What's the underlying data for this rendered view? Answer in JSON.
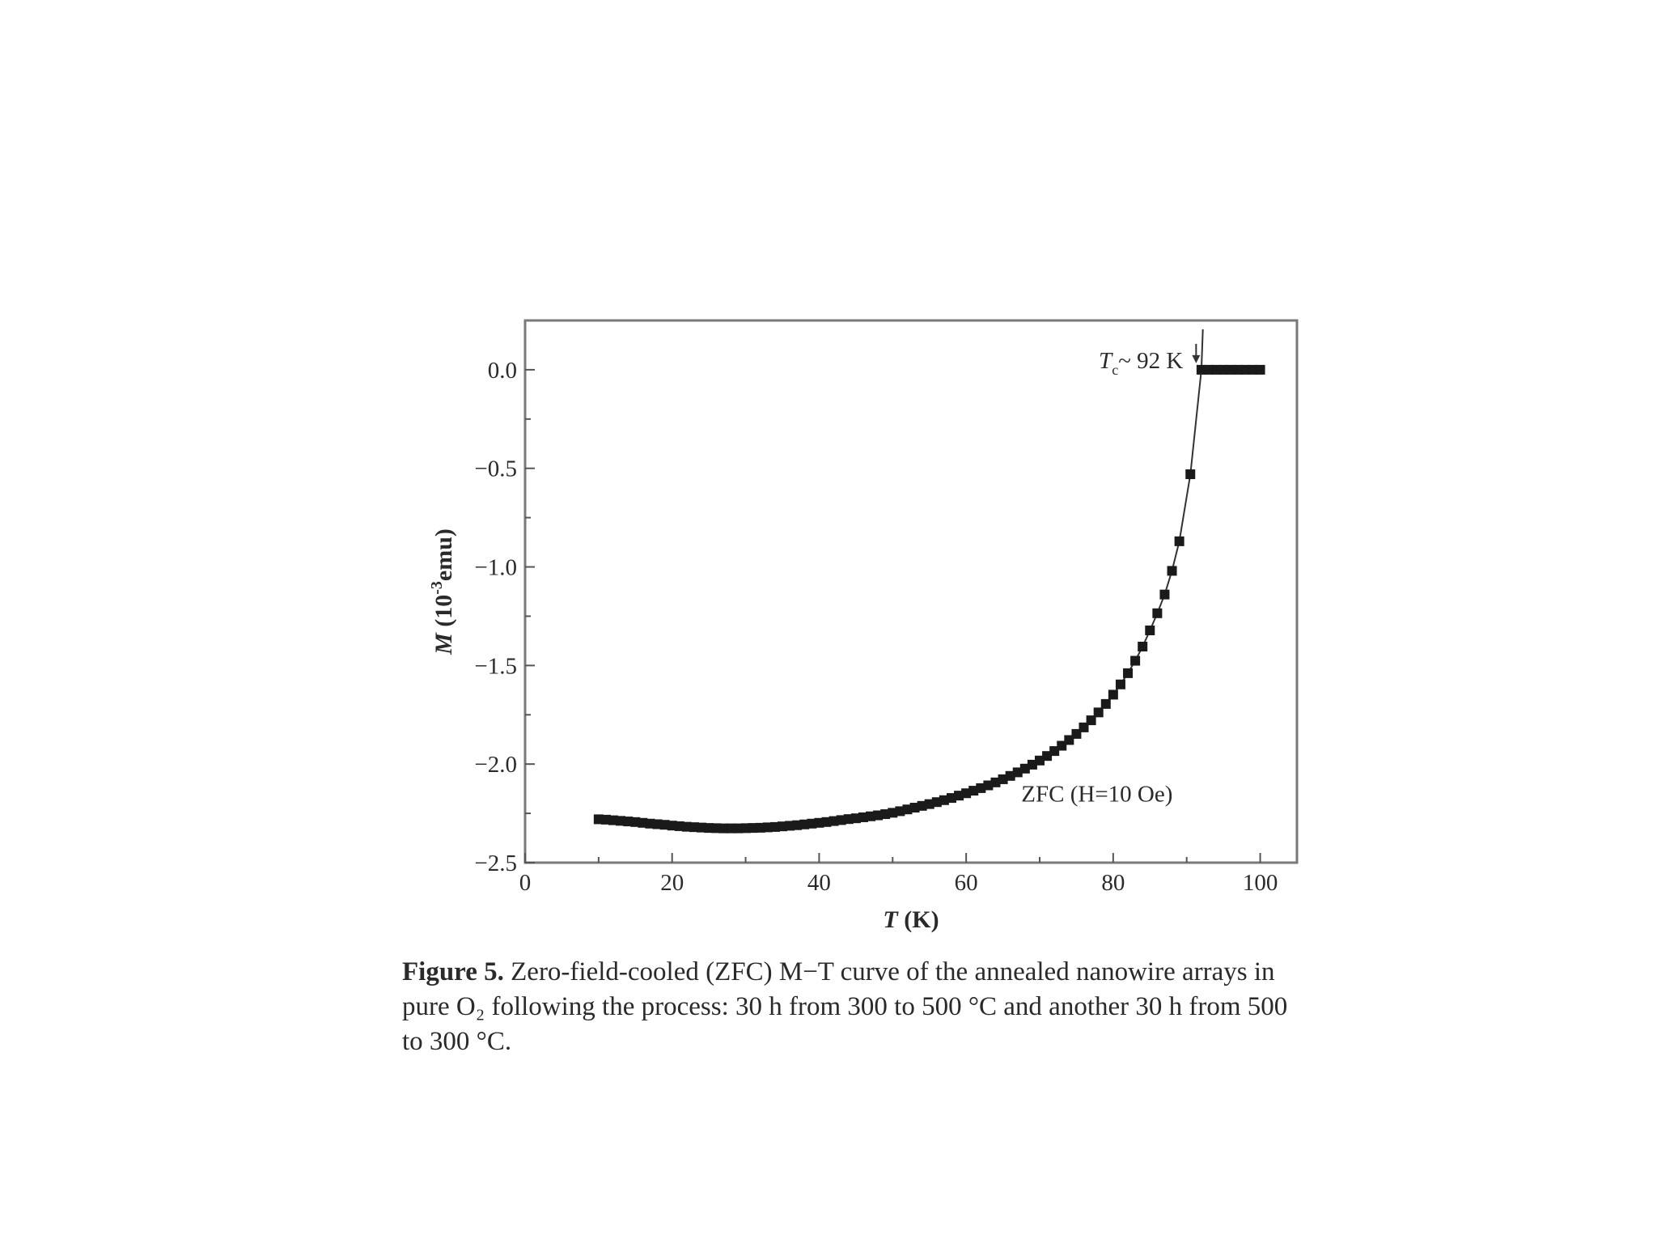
{
  "chart_data": {
    "type": "scatter",
    "xlabel_var": "T",
    "xlabel_unit": " (K)",
    "ylabel_var": "M",
    "ylabel_unit_pre": " (10",
    "ylabel_unit_sup": "-3",
    "ylabel_unit_post": "emu)",
    "xlim": [
      0,
      105
    ],
    "ylim": [
      -2.5,
      0.25
    ],
    "xticks": [
      0,
      20,
      40,
      60,
      80,
      100
    ],
    "yticks": [
      0.0,
      -0.5,
      -1.0,
      -1.5,
      -2.0,
      -2.5
    ],
    "xtick_labels": [
      "0",
      "20",
      "40",
      "60",
      "80",
      "100"
    ],
    "ytick_labels": [
      "0.0",
      "−0.5",
      "−1.0",
      "−1.5",
      "−2.0",
      "−2.5"
    ],
    "annotation_tc_var": "T",
    "annotation_tc_sub": "c",
    "annotation_tc_text": "~ 92 K",
    "annotation_tc_x": 91.5,
    "annotation_zfc": "ZFC (H=10 Oe)",
    "series": [
      {
        "x": [
          10,
          11,
          12,
          13,
          14,
          15,
          16,
          17,
          18,
          19,
          20,
          21,
          22,
          23,
          24,
          25,
          26,
          27,
          28,
          29,
          30,
          31,
          32,
          33,
          34,
          35,
          36,
          37,
          38,
          39,
          40,
          41,
          42,
          43,
          44,
          45,
          46,
          47,
          48,
          49,
          50,
          51,
          52,
          53,
          54,
          55,
          56,
          57,
          58,
          59,
          60,
          61,
          62,
          63,
          64,
          65,
          66,
          67,
          68,
          69,
          70,
          71,
          72,
          73,
          74,
          75,
          76,
          77,
          78,
          79,
          80,
          81,
          82,
          83,
          84,
          85,
          86,
          87,
          88,
          89,
          90.5,
          92,
          93,
          94,
          95,
          96,
          97,
          98,
          99,
          100
        ],
        "y": [
          -2.28,
          -2.282,
          -2.285,
          -2.288,
          -2.291,
          -2.294,
          -2.298,
          -2.302,
          -2.305,
          -2.308,
          -2.312,
          -2.315,
          -2.318,
          -2.32,
          -2.322,
          -2.324,
          -2.325,
          -2.326,
          -2.326,
          -2.326,
          -2.325,
          -2.324,
          -2.323,
          -2.321,
          -2.319,
          -2.316,
          -2.313,
          -2.31,
          -2.306,
          -2.302,
          -2.298,
          -2.294,
          -2.289,
          -2.284,
          -2.279,
          -2.275,
          -2.27,
          -2.265,
          -2.26,
          -2.254,
          -2.247,
          -2.239,
          -2.23,
          -2.221,
          -2.212,
          -2.203,
          -2.193,
          -2.183,
          -2.172,
          -2.16,
          -2.148,
          -2.135,
          -2.122,
          -2.108,
          -2.093,
          -2.077,
          -2.06,
          -2.042,
          -2.023,
          -2.003,
          -1.982,
          -1.959,
          -1.934,
          -1.907,
          -1.878,
          -1.847,
          -1.814,
          -1.778,
          -1.738,
          -1.695,
          -1.648,
          -1.596,
          -1.539,
          -1.476,
          -1.404,
          -1.322,
          -1.235,
          -1.14,
          -1.02,
          -0.87,
          -0.53,
          0.0,
          0.0,
          0.0,
          0.0,
          0.0,
          0.0,
          0.0,
          0.0,
          0.0
        ]
      }
    ]
  },
  "caption": {
    "label": "Figure 5.",
    "text": " Zero-field-cooled (ZFC) M−T curve of the annealed nanowire arrays in pure O₂ following the process: 30 h from 300 to 500 °C and another 30 h from 500 to 300 °C."
  }
}
